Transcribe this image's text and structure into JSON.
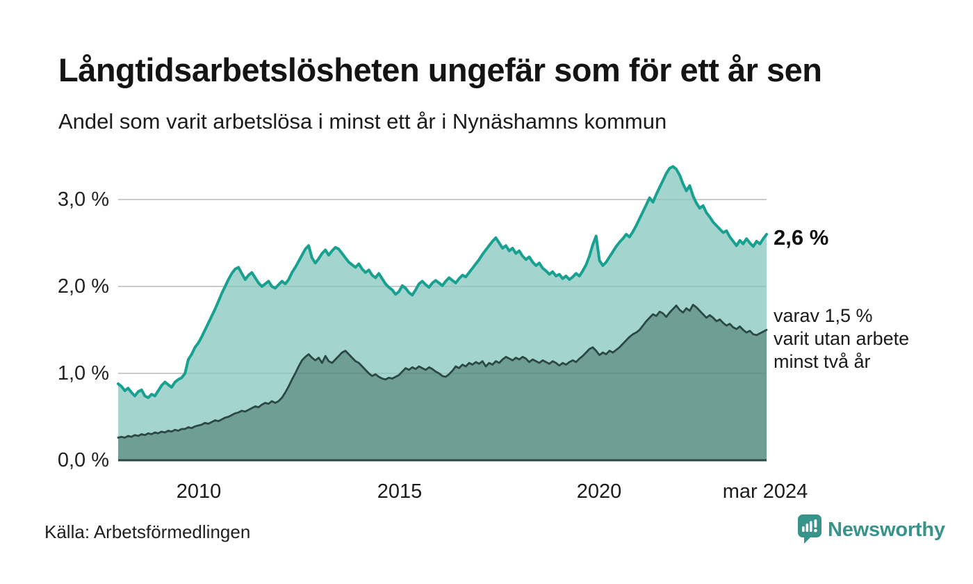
{
  "header": {
    "title": "Långtidsarbetslösheten ungefär som för ett år sen",
    "subtitle": "Andel som varit arbetslösa i minst ett år i Nynäshamns kommun"
  },
  "footer": {
    "source": "Källa: Arbetsförmedlingen",
    "logo_text": "Newsworthy"
  },
  "annotations": {
    "end_value": "2,6 %",
    "breakdown_lines": [
      "varav 1,5 %",
      "varit utan arbete",
      "minst två år"
    ]
  },
  "colors": {
    "line_1yr": "#18a091",
    "fill_1yr": "#a3d5ce",
    "line_2yr": "#2c4844",
    "fill_2yr": "#6f9e97",
    "gridline": "#dadada",
    "gridline_overlay": "rgba(30,60,56,0.09)",
    "axis": "#2c4844",
    "brand": "#38938a"
  },
  "chart_data": {
    "type": "area",
    "title": "Långtidsarbetslösheten ungefär som för ett år sen",
    "subtitle": "Andel som varit arbetslösa i minst ett år i Nynäshamns kommun",
    "x_unit": "month",
    "x_start": "2008-01",
    "x_end": "2024-03",
    "ylim": [
      0,
      3.4
    ],
    "grid": "horizontal",
    "legend_position": "right-annotations",
    "y_ticks": [
      {
        "label": "0,0 %",
        "value": 0
      },
      {
        "label": "1,0 %",
        "value": 1
      },
      {
        "label": "2,0 %",
        "value": 2
      },
      {
        "label": "3,0 %",
        "value": 3
      }
    ],
    "y_gridlines": [
      1,
      2,
      3
    ],
    "x_ticks": [
      {
        "label": "2010",
        "month_index": 24
      },
      {
        "label": "2015",
        "month_index": 84
      },
      {
        "label": "2020",
        "month_index": 144
      },
      {
        "label": "mar 2024",
        "month_index": 194
      }
    ],
    "series": [
      {
        "name": "minst ett år",
        "end_label": "2,6 %",
        "end_value": 2.6,
        "values": [
          0.88,
          0.85,
          0.8,
          0.83,
          0.78,
          0.74,
          0.79,
          0.81,
          0.74,
          0.72,
          0.76,
          0.74,
          0.8,
          0.86,
          0.9,
          0.87,
          0.84,
          0.9,
          0.93,
          0.95,
          1.0,
          1.16,
          1.22,
          1.3,
          1.35,
          1.42,
          1.5,
          1.58,
          1.66,
          1.74,
          1.83,
          1.92,
          2.0,
          2.08,
          2.15,
          2.2,
          2.22,
          2.15,
          2.08,
          2.13,
          2.16,
          2.1,
          2.04,
          2.0,
          2.03,
          2.06,
          2.0,
          1.98,
          2.02,
          2.06,
          2.03,
          2.08,
          2.16,
          2.22,
          2.29,
          2.36,
          2.43,
          2.47,
          2.33,
          2.27,
          2.32,
          2.38,
          2.42,
          2.36,
          2.41,
          2.45,
          2.43,
          2.38,
          2.33,
          2.28,
          2.25,
          2.22,
          2.26,
          2.2,
          2.16,
          2.19,
          2.13,
          2.1,
          2.15,
          2.09,
          2.03,
          1.99,
          1.96,
          1.91,
          1.94,
          2.01,
          1.98,
          1.93,
          1.9,
          1.96,
          2.03,
          2.06,
          2.02,
          1.99,
          2.04,
          2.07,
          2.04,
          2.01,
          2.06,
          2.1,
          2.07,
          2.04,
          2.09,
          2.13,
          2.11,
          2.16,
          2.21,
          2.26,
          2.31,
          2.37,
          2.42,
          2.47,
          2.52,
          2.56,
          2.5,
          2.44,
          2.47,
          2.41,
          2.44,
          2.38,
          2.41,
          2.35,
          2.31,
          2.34,
          2.28,
          2.24,
          2.27,
          2.21,
          2.18,
          2.14,
          2.17,
          2.12,
          2.14,
          2.09,
          2.12,
          2.08,
          2.11,
          2.15,
          2.12,
          2.18,
          2.25,
          2.35,
          2.48,
          2.58,
          2.3,
          2.24,
          2.28,
          2.34,
          2.4,
          2.46,
          2.51,
          2.55,
          2.6,
          2.57,
          2.63,
          2.7,
          2.78,
          2.86,
          2.94,
          3.02,
          2.97,
          3.06,
          3.14,
          3.22,
          3.3,
          3.36,
          3.38,
          3.35,
          3.28,
          3.18,
          3.1,
          3.16,
          3.04,
          2.96,
          2.9,
          2.93,
          2.85,
          2.8,
          2.74,
          2.7,
          2.66,
          2.62,
          2.64,
          2.57,
          2.52,
          2.47,
          2.53,
          2.49,
          2.55,
          2.5,
          2.46,
          2.52,
          2.49,
          2.55,
          2.6
        ]
      },
      {
        "name": "minst två år",
        "end_label": "varav 1,5 % varit utan arbete minst två år",
        "end_value": 1.5,
        "values": [
          0.26,
          0.27,
          0.26,
          0.28,
          0.27,
          0.29,
          0.28,
          0.3,
          0.29,
          0.31,
          0.3,
          0.32,
          0.31,
          0.33,
          0.32,
          0.34,
          0.33,
          0.35,
          0.34,
          0.36,
          0.36,
          0.38,
          0.37,
          0.39,
          0.4,
          0.41,
          0.43,
          0.42,
          0.44,
          0.46,
          0.45,
          0.47,
          0.49,
          0.5,
          0.52,
          0.54,
          0.55,
          0.57,
          0.56,
          0.58,
          0.6,
          0.62,
          0.61,
          0.64,
          0.66,
          0.65,
          0.68,
          0.66,
          0.68,
          0.72,
          0.78,
          0.85,
          0.93,
          1.0,
          1.08,
          1.15,
          1.19,
          1.22,
          1.18,
          1.15,
          1.18,
          1.12,
          1.2,
          1.14,
          1.12,
          1.16,
          1.2,
          1.24,
          1.26,
          1.22,
          1.18,
          1.14,
          1.12,
          1.08,
          1.04,
          1.0,
          0.97,
          0.99,
          0.96,
          0.94,
          0.93,
          0.95,
          0.94,
          0.96,
          0.98,
          1.02,
          1.06,
          1.04,
          1.07,
          1.05,
          1.08,
          1.06,
          1.04,
          1.07,
          1.05,
          1.02,
          1.0,
          0.97,
          0.96,
          0.99,
          1.03,
          1.08,
          1.06,
          1.1,
          1.08,
          1.12,
          1.1,
          1.13,
          1.11,
          1.14,
          1.08,
          1.12,
          1.1,
          1.14,
          1.12,
          1.16,
          1.19,
          1.17,
          1.15,
          1.18,
          1.16,
          1.19,
          1.17,
          1.13,
          1.16,
          1.14,
          1.12,
          1.15,
          1.13,
          1.11,
          1.14,
          1.12,
          1.09,
          1.12,
          1.1,
          1.13,
          1.15,
          1.13,
          1.17,
          1.2,
          1.24,
          1.28,
          1.3,
          1.26,
          1.21,
          1.24,
          1.22,
          1.26,
          1.24,
          1.27,
          1.3,
          1.34,
          1.38,
          1.42,
          1.45,
          1.47,
          1.5,
          1.55,
          1.6,
          1.64,
          1.68,
          1.66,
          1.71,
          1.69,
          1.65,
          1.7,
          1.74,
          1.78,
          1.73,
          1.7,
          1.75,
          1.72,
          1.79,
          1.76,
          1.72,
          1.68,
          1.64,
          1.67,
          1.64,
          1.6,
          1.62,
          1.58,
          1.55,
          1.57,
          1.53,
          1.51,
          1.54,
          1.5,
          1.47,
          1.49,
          1.45,
          1.44,
          1.46,
          1.48,
          1.5
        ]
      }
    ]
  }
}
